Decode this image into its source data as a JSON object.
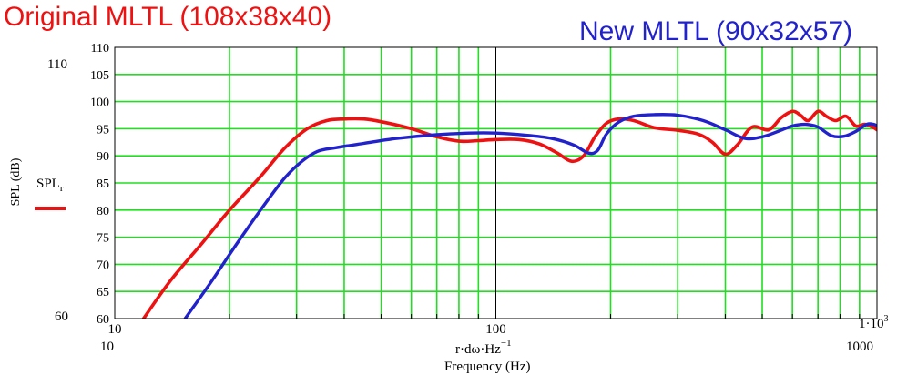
{
  "titles": {
    "original": "Original MLTL (108x38x40)",
    "new": "New MLTL (90x32x57)"
  },
  "colors": {
    "original": "#ee1111",
    "new": "#2222cc",
    "grid": "#22dd22",
    "axis": "#000000"
  },
  "y_axis": {
    "label": "SPL (dB)",
    "top_extreme": "110",
    "bottom_extreme": "60"
  },
  "legend": {
    "name": "SPL",
    "subscript": "r"
  },
  "x_axis": {
    "expr_main": "r·dω·Hz",
    "expr_sup": "−1",
    "label": "Frequency (Hz)",
    "left_extreme": "10",
    "right_extreme": "1000",
    "top_right_main": "1·10",
    "top_right_sup": "3"
  },
  "chart_data": {
    "type": "line",
    "xscale": "log",
    "xlim": [
      10,
      1000
    ],
    "ylim": [
      60,
      110
    ],
    "grid": true,
    "xticks": [
      10,
      100,
      1000
    ],
    "xtick_labels": [
      "10",
      "100",
      "1·10³"
    ],
    "yticks": [
      60,
      65,
      70,
      75,
      80,
      85,
      90,
      95,
      100,
      105,
      110
    ],
    "ytick_labels": [
      "60",
      "65",
      "70",
      "75",
      "80",
      "85",
      "90",
      "95",
      "100",
      "105",
      "110"
    ],
    "xlabel": "Frequency (Hz)",
    "ylabel": "SPL (dB)",
    "series": [
      {
        "name": "Original MLTL (108x38x40)",
        "color": "#ee1111",
        "x": [
          11.9,
          14,
          17,
          20,
          24,
          28,
          32,
          36,
          40,
          45,
          50,
          60,
          70,
          80,
          90,
          100,
          115,
          130,
          145,
          158,
          170,
          182,
          195,
          210,
          230,
          260,
          300,
          340,
          370,
          400,
          430,
          470,
          520,
          560,
          600,
          630,
          660,
          700,
          740,
          780,
          830,
          880,
          930,
          980,
          1000
        ],
        "y": [
          60,
          67,
          74,
          80,
          86,
          91.5,
          95,
          96.5,
          96.8,
          96.8,
          96.3,
          95,
          93.5,
          92.7,
          92.8,
          93,
          93,
          92.2,
          90.5,
          89,
          90,
          93.5,
          96,
          96.8,
          96.5,
          95.2,
          94.7,
          94,
          92.5,
          90.3,
          92,
          95.3,
          94.8,
          97,
          98.2,
          97.5,
          96.5,
          98.2,
          97.2,
          96.5,
          97.3,
          95.5,
          95.8,
          95.2,
          94.8
        ]
      },
      {
        "name": "New MLTL (90x32x57)",
        "color": "#2222cc",
        "x": [
          15.3,
          18,
          21,
          25,
          28,
          31,
          34,
          38,
          45,
          55,
          70,
          85,
          100,
          120,
          140,
          160,
          175,
          185,
          195,
          210,
          230,
          260,
          300,
          350,
          400,
          450,
          500,
          550,
          600,
          650,
          700,
          760,
          820,
          880,
          940,
          980,
          1000
        ],
        "y": [
          60,
          67,
          74,
          81.5,
          86,
          89,
          90.8,
          91.5,
          92.3,
          93.2,
          93.9,
          94.2,
          94.2,
          93.8,
          93.2,
          92,
          90.5,
          91,
          94,
          96.2,
          97.3,
          97.6,
          97.5,
          96.5,
          94.8,
          93.2,
          93.5,
          94.5,
          95.5,
          95.8,
          95.3,
          93.7,
          93.6,
          94.5,
          95.8,
          95.8,
          95.5
        ]
      }
    ]
  }
}
